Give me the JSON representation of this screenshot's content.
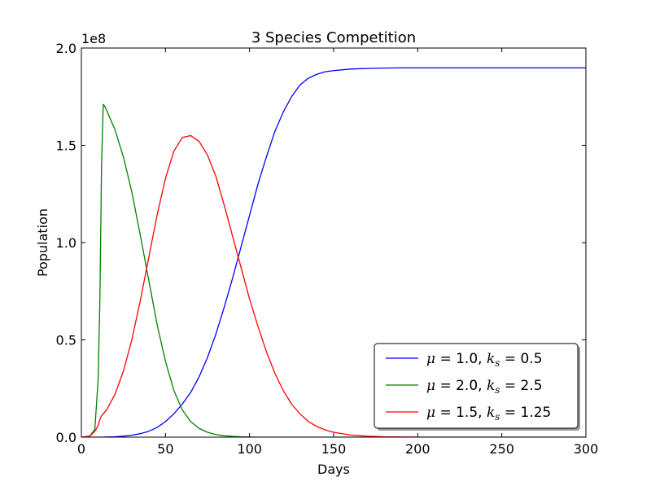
{
  "chart_data": {
    "type": "line",
    "title": "3 Species Competition",
    "xlabel": "Days",
    "ylabel": "Population",
    "y_offset_label": "1e8",
    "xlim": [
      0,
      300
    ],
    "ylim": [
      0,
      2.0
    ],
    "x_ticks": [
      0,
      50,
      100,
      150,
      200,
      250,
      300
    ],
    "x_tick_labels": [
      "0",
      "50",
      "100",
      "150",
      "200",
      "250",
      "300"
    ],
    "y_ticks": [
      0,
      0.5,
      1.0,
      1.5,
      2.0
    ],
    "y_tick_labels": [
      "0.0",
      "0.5",
      "1.0",
      "1.5",
      "2.0"
    ],
    "grid": false,
    "legend_position": "lower-right",
    "x": [
      0,
      5,
      8,
      10,
      11,
      12,
      13,
      14,
      15,
      20,
      25,
      30,
      35,
      40,
      45,
      50,
      55,
      60,
      65,
      70,
      75,
      80,
      85,
      90,
      95,
      100,
      105,
      110,
      115,
      120,
      125,
      130,
      135,
      140,
      145,
      150,
      160,
      170,
      180,
      190,
      200,
      220,
      250,
      300
    ],
    "series": [
      {
        "name": "μ = 1.0, k_s = 0.5",
        "legend_parts": {
          "mu": "μ",
          "mu_val": " = 1.0, ",
          "k": "k",
          "sub": "s",
          "k_val": " = 0.5"
        },
        "color": "#0000ff",
        "values": [
          0,
          0,
          0,
          0,
          0,
          0,
          0,
          0.001,
          0.001,
          0.002,
          0.005,
          0.01,
          0.018,
          0.03,
          0.05,
          0.08,
          0.12,
          0.17,
          0.23,
          0.31,
          0.41,
          0.53,
          0.67,
          0.82,
          0.98,
          1.14,
          1.3,
          1.44,
          1.57,
          1.67,
          1.75,
          1.81,
          1.845,
          1.865,
          1.878,
          1.884,
          1.892,
          1.895,
          1.897,
          1.898,
          1.898,
          1.898,
          1.898,
          1.898
        ]
      },
      {
        "name": "μ = 2.0, k_s = 2.5",
        "legend_parts": {
          "mu": "μ",
          "mu_val": " = 2.0, ",
          "k": "k",
          "sub": "s",
          "k_val": " = 2.5"
        },
        "color": "#008000",
        "values": [
          0,
          0.005,
          0.04,
          0.3,
          0.7,
          1.4,
          1.71,
          1.7,
          1.68,
          1.58,
          1.44,
          1.26,
          1.04,
          0.81,
          0.58,
          0.39,
          0.24,
          0.14,
          0.08,
          0.045,
          0.025,
          0.013,
          0.007,
          0.004,
          0.002,
          0.001,
          0,
          0,
          0,
          0,
          0,
          0,
          0,
          0,
          0,
          0,
          0,
          0,
          0,
          0,
          0,
          0,
          0,
          0
        ]
      },
      {
        "name": "μ = 1.5, k_s = 1.25",
        "legend_parts": {
          "mu": "μ",
          "mu_val": " = 1.5, ",
          "k": "k",
          "sub": "s",
          "k_val": " = 1.25"
        },
        "color": "#ff0000",
        "values": [
          0,
          0.005,
          0.03,
          0.06,
          0.09,
          0.11,
          0.12,
          0.13,
          0.14,
          0.22,
          0.34,
          0.5,
          0.7,
          0.92,
          1.14,
          1.33,
          1.47,
          1.54,
          1.55,
          1.52,
          1.45,
          1.34,
          1.19,
          1.03,
          0.87,
          0.71,
          0.57,
          0.44,
          0.33,
          0.24,
          0.17,
          0.12,
          0.08,
          0.055,
          0.037,
          0.025,
          0.011,
          0.005,
          0.002,
          0.001,
          0,
          0,
          0,
          0
        ]
      }
    ]
  }
}
